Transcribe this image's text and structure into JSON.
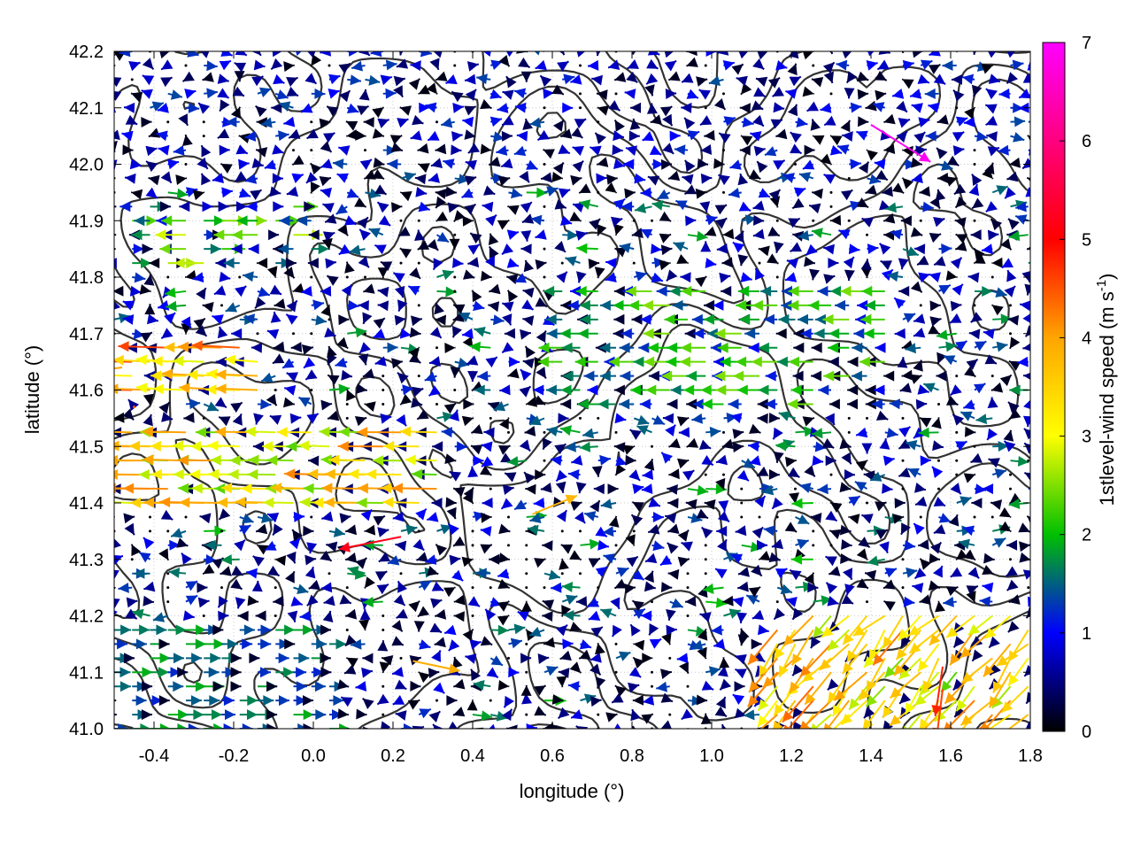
{
  "chart_data": {
    "type": "vector-field",
    "xlabel": "longitude (°)",
    "ylabel": "latitude (°)",
    "xlim": [
      -0.5,
      1.8
    ],
    "ylim": [
      41.0,
      42.2
    ],
    "x_ticks": [
      -0.4,
      -0.2,
      0.0,
      0.2,
      0.4,
      0.6,
      0.8,
      1.0,
      1.2,
      1.4,
      1.6,
      1.8
    ],
    "x_tick_labels": [
      "-0.4",
      "-0.2",
      "0.0",
      "0.2",
      "0.4",
      "0.6",
      "0.8",
      "1.0",
      "1.2",
      "1.4",
      "1.6",
      "1.8"
    ],
    "y_ticks": [
      41.0,
      41.1,
      41.2,
      41.3,
      41.4,
      41.5,
      41.6,
      41.7,
      41.8,
      41.9,
      42.0,
      42.1,
      42.2
    ],
    "y_tick_labels": [
      "41.0",
      "41.1",
      "41.2",
      "41.3",
      "41.4",
      "41.5",
      "41.6",
      "41.7",
      "41.8",
      "41.9",
      "42.0",
      "42.1",
      "42.2"
    ],
    "grid": true,
    "colorbar": {
      "label_main": "1stlevel-wind speed (m s",
      "label_sup": "-1",
      "label_end": ")",
      "range": [
        0,
        7
      ],
      "ticks": [
        0,
        1,
        2,
        3,
        4,
        5,
        6,
        7
      ],
      "tick_labels": [
        "0",
        "1",
        "2",
        "3",
        "4",
        "5",
        "6",
        "7"
      ],
      "colors": [
        "#000000",
        "#0000ff",
        "#00c000",
        "#ffff00",
        "#ffa500",
        "#ff0000",
        "#ff00ff"
      ]
    },
    "contour_color": "#333333",
    "vectors": [
      {
        "lon": -0.45,
        "lat": 41.57,
        "u": 0,
        "v": 0,
        "speed": 4.5
      },
      {
        "lon": -0.48,
        "lat": 41.64,
        "u": -4.0,
        "v": -0.5,
        "speed": 4.0
      },
      {
        "lon": 0.22,
        "lat": 41.34,
        "u": -5.0,
        "v": -1.0,
        "speed": 5.2
      },
      {
        "lon": 1.4,
        "lat": 42.07,
        "u": 4.8,
        "v": -3.0,
        "speed": 6.9
      },
      {
        "lon": 1.58,
        "lat": 41.07,
        "u": -0.5,
        "v": -4.0,
        "speed": 4.6
      },
      {
        "lon": 1.58,
        "lat": 41.11,
        "u": -0.6,
        "v": -4.0,
        "speed": 4.8
      },
      {
        "lon": 0.55,
        "lat": 41.38,
        "u": 3.6,
        "v": 1.5,
        "speed": 3.8
      },
      {
        "lon": 0.25,
        "lat": 41.12,
        "u": 3.8,
        "v": -0.8,
        "speed": 3.9
      }
    ]
  }
}
